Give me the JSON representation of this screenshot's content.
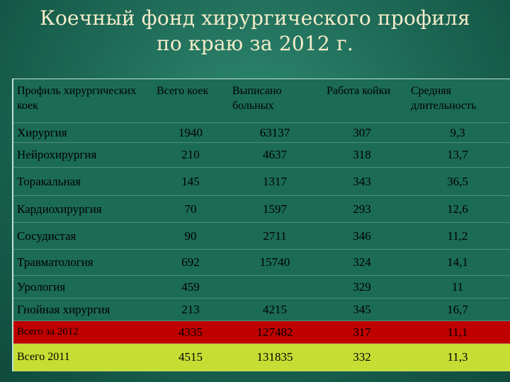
{
  "title": {
    "line1": "Коечный фонд хирургического профиля",
    "line2": "по краю за 2012 г."
  },
  "table": {
    "headers": {
      "profile": "Профиль хирургических коек",
      "total_beds": "Всего коек",
      "discharged": "Выписано больных",
      "bed_work": "Работа койки",
      "avg_duration": "Средняя длительность"
    },
    "rows": [
      {
        "profile": "Хирургия",
        "total_beds": "1940",
        "discharged": "63137",
        "bed_work": "307",
        "avg_duration": "9,3"
      },
      {
        "profile": "Нейрохирургия",
        "total_beds": "210",
        "discharged": "4637",
        "bed_work": "318",
        "avg_duration": "13,7"
      },
      {
        "profile": "Торакальная",
        "total_beds": "145",
        "discharged": "1317",
        "bed_work": "343",
        "avg_duration": "36,5"
      },
      {
        "profile": "Кардиохирургия",
        "total_beds": "70",
        "discharged": "1597",
        "bed_work": "293",
        "avg_duration": "12,6"
      },
      {
        "profile": "Сосудистая",
        "total_beds": "90",
        "discharged": "2711",
        "bed_work": "346",
        "avg_duration": "11,2"
      },
      {
        "profile": "Травматология",
        "total_beds": "692",
        "discharged": "15740",
        "bed_work": "324",
        "avg_duration": "14,1"
      },
      {
        "profile": "Урология",
        "total_beds": "459",
        "discharged": "",
        "bed_work": "329",
        "avg_duration": "11"
      },
      {
        "profile": "Гнойная хирургия",
        "total_beds": "213",
        "discharged": "4215",
        "bed_work": "345",
        "avg_duration": "16,7"
      }
    ],
    "total_2012": {
      "profile": "Всего за 2012",
      "total_beds": "4335",
      "discharged": "127482",
      "bed_work": "317",
      "avg_duration": "11,1"
    },
    "total_2011": {
      "profile": "Всего 2011",
      "total_beds": "4515",
      "discharged": "131835",
      "bed_work": "332",
      "avg_duration": "11,3"
    }
  },
  "colors": {
    "background": "#1f6c58",
    "title_text": "#f3ecc9",
    "total_2012_fill": "#c00000",
    "total_2011_fill": "#c6dd33"
  }
}
